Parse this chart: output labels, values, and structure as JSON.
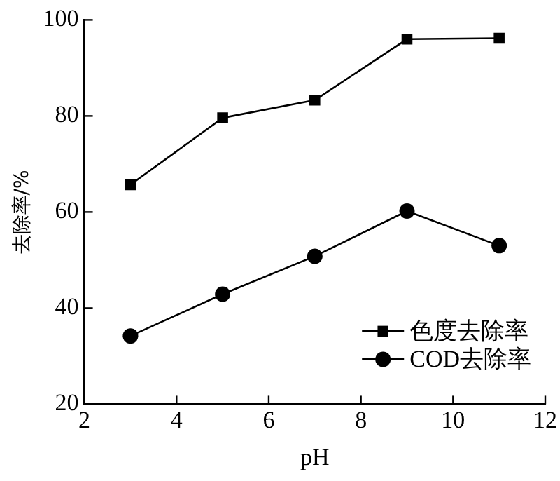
{
  "chart_data": {
    "type": "line",
    "xlabel": "pH",
    "ylabel": "去除率/%",
    "x": [
      3,
      5,
      7,
      9,
      11
    ],
    "series": [
      {
        "name": "色度去除率",
        "color": "#000000",
        "marker": "square",
        "values": [
          65.7,
          79.6,
          83.3,
          96,
          96.2
        ]
      },
      {
        "name": "COD去除率",
        "color": "#000000",
        "marker": "circle",
        "values": [
          34.2,
          42.9,
          50.8,
          60.2,
          53
        ]
      }
    ],
    "xlim": [
      2,
      12
    ],
    "xticks": [
      2,
      4,
      6,
      8,
      10,
      12
    ],
    "ylim": [
      20,
      100
    ],
    "yticks": [
      20,
      40,
      60,
      80,
      100
    ],
    "grid": false,
    "legend": "bottom right",
    "line_style": "solid"
  }
}
